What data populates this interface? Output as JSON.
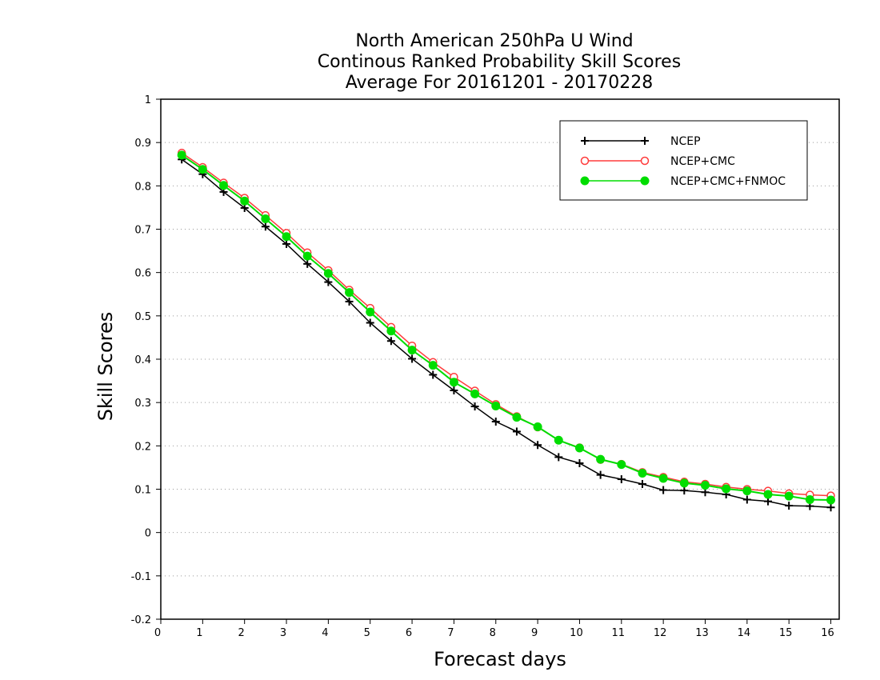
{
  "chart_data": {
    "type": "line",
    "title_lines": [
      "North American 250hPa U Wind",
      "Continous Ranked Probability Skill Scores",
      "Average For 20161201 - 20170228"
    ],
    "xlabel": "Forecast days",
    "ylabel": "Skill Scores",
    "xlim": [
      0,
      16.2
    ],
    "ylim": [
      -0.2,
      1
    ],
    "x_ticks": [
      0,
      1,
      2,
      3,
      4,
      5,
      6,
      7,
      8,
      9,
      10,
      11,
      12,
      13,
      14,
      15,
      16
    ],
    "y_ticks": [
      -0.2,
      -0.1,
      0,
      0.1,
      0.2,
      0.3,
      0.4,
      0.5,
      0.6,
      0.7,
      0.8,
      0.9,
      1
    ],
    "y_tick_labels": [
      "-0.2",
      "-0.1",
      "0",
      "0.1",
      "0.2",
      "0.3",
      "0.4",
      "0.5",
      "0.6",
      "0.7",
      "0.8",
      "0.9",
      "1"
    ],
    "grid": "horizontal dotted",
    "legend_position": "top-right",
    "x": [
      0.5,
      1,
      1.5,
      2,
      2.5,
      3,
      3.5,
      4,
      4.5,
      5,
      5.5,
      6,
      6.5,
      7,
      7.5,
      8,
      8.5,
      9,
      9.5,
      10,
      10.5,
      11,
      11.5,
      12,
      12.5,
      13,
      13.5,
      14,
      14.5,
      15,
      15.5,
      16
    ],
    "series": [
      {
        "name": "NCEP",
        "color": "#000000",
        "marker": "plus",
        "values": [
          0.861,
          0.827,
          0.786,
          0.749,
          0.706,
          0.666,
          0.62,
          0.578,
          0.533,
          0.484,
          0.442,
          0.401,
          0.364,
          0.328,
          0.291,
          0.256,
          0.233,
          0.202,
          0.174,
          0.16,
          0.133,
          0.123,
          0.112,
          0.098,
          0.097,
          0.093,
          0.088,
          0.076,
          0.072,
          0.062,
          0.061,
          0.058
        ]
      },
      {
        "name": "NCEP+CMC",
        "color": "#ff3b3b",
        "marker": "open-circle",
        "values": [
          0.876,
          0.843,
          0.807,
          0.772,
          0.732,
          0.691,
          0.646,
          0.605,
          0.56,
          0.518,
          0.474,
          0.431,
          0.393,
          0.359,
          0.327,
          0.296,
          0.268,
          0.243,
          0.213,
          0.196,
          0.168,
          0.158,
          0.139,
          0.128,
          0.117,
          0.112,
          0.105,
          0.1,
          0.096,
          0.09,
          0.087,
          0.085
        ]
      },
      {
        "name": "NCEP+CMC+FNMOC",
        "color": "#00dd00",
        "marker": "filled-circle",
        "values": [
          0.871,
          0.838,
          0.801,
          0.765,
          0.724,
          0.683,
          0.638,
          0.598,
          0.554,
          0.509,
          0.465,
          0.421,
          0.386,
          0.347,
          0.32,
          0.292,
          0.266,
          0.244,
          0.213,
          0.195,
          0.169,
          0.157,
          0.137,
          0.125,
          0.114,
          0.109,
          0.101,
          0.096,
          0.088,
          0.084,
          0.076,
          0.075
        ]
      }
    ]
  }
}
